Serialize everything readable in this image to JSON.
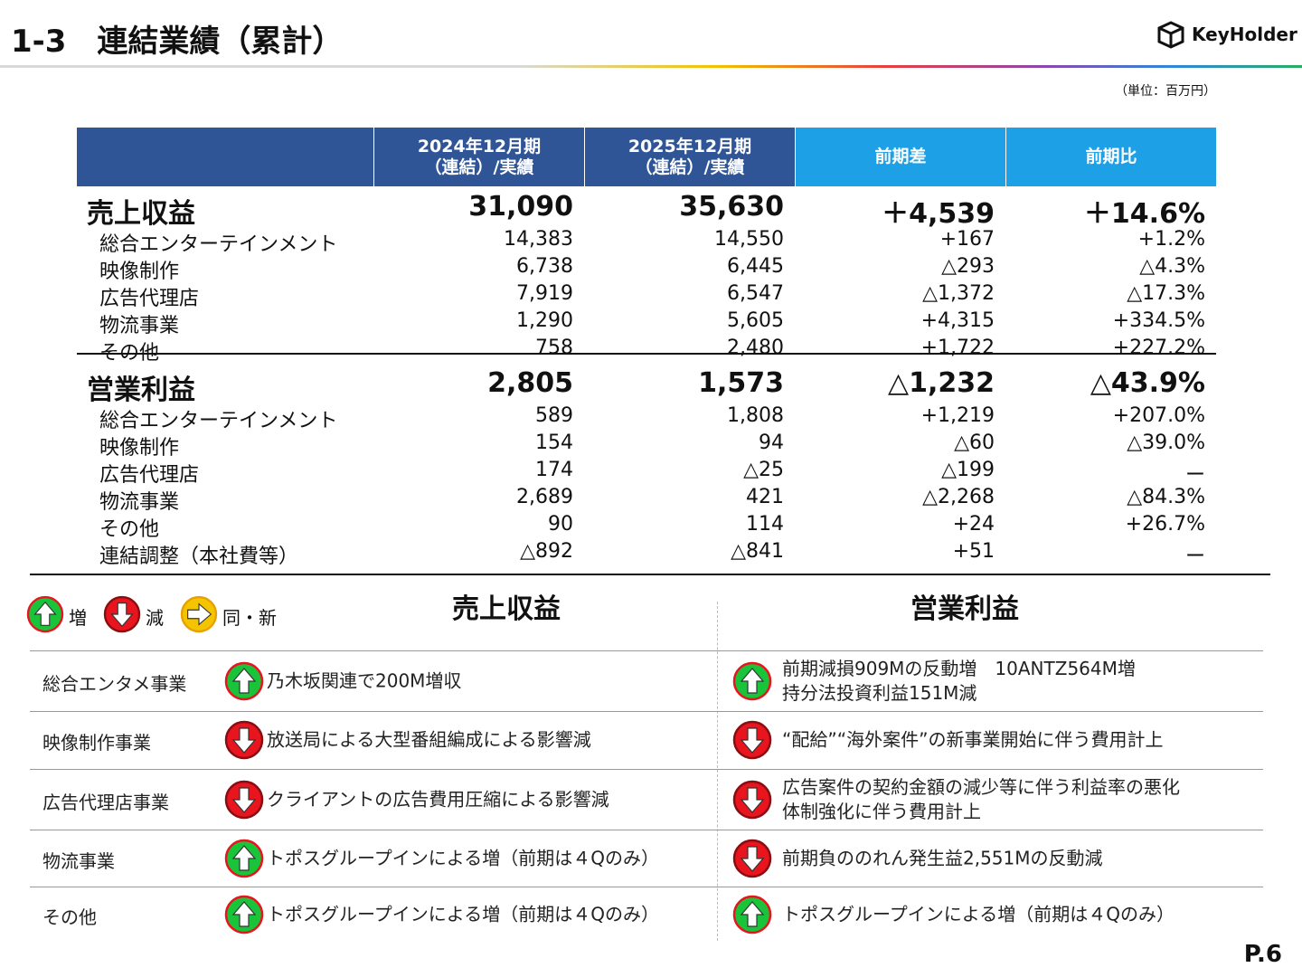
{
  "header": {
    "title": "1-3　連結業績（累計）",
    "logo": "KeyHolder"
  },
  "unit": "（単位：百万円）",
  "table": {
    "columns": [
      [
        "2024年12月期",
        "（連結）/実績"
      ],
      [
        "2025年12月期",
        "（連結）/実績"
      ],
      [
        "前期差"
      ],
      [
        "前期比"
      ]
    ],
    "sections": [
      {
        "label": "売上収益",
        "values": [
          "31,090",
          "35,630",
          "＋4,539",
          "＋14.6%"
        ],
        "rows": [
          {
            "label": "総合エンターテインメント",
            "values": [
              "14,383",
              "14,550",
              "+167",
              "+1.2%"
            ]
          },
          {
            "label": "映像制作",
            "values": [
              "6,738",
              "6,445",
              "△293",
              "△4.3%"
            ]
          },
          {
            "label": "広告代理店",
            "values": [
              "7,919",
              "6,547",
              "△1,372",
              "△17.3%"
            ]
          },
          {
            "label": "物流事業",
            "values": [
              "1,290",
              "5,605",
              "+4,315",
              "+334.5%"
            ]
          },
          {
            "label": "その他",
            "values": [
              "758",
              "2,480",
              "+1,722",
              "+227.2%"
            ]
          }
        ]
      },
      {
        "label": "営業利益",
        "values": [
          "2,805",
          "1,573",
          "△1,232",
          "△43.9%"
        ],
        "rows": [
          {
            "label": "総合エンターテインメント",
            "values": [
              "589",
              "1,808",
              "+1,219",
              "+207.0%"
            ]
          },
          {
            "label": "映像制作",
            "values": [
              "154",
              "94",
              "△60",
              "△39.0%"
            ]
          },
          {
            "label": "広告代理店",
            "values": [
              "174",
              "△25",
              "△199",
              "ー"
            ]
          },
          {
            "label": "物流事業",
            "values": [
              "2,689",
              "421",
              "△2,268",
              "△84.3%"
            ]
          },
          {
            "label": "その他",
            "values": [
              "90",
              "114",
              "+24",
              "+26.7%"
            ]
          },
          {
            "label": "連結調整（本社費等）",
            "values": [
              "△892",
              "△841",
              "+51",
              "ー"
            ]
          }
        ]
      }
    ]
  },
  "legend": [
    {
      "icon": "up",
      "label": "増"
    },
    {
      "icon": "down",
      "label": "減"
    },
    {
      "icon": "same",
      "label": "同・新"
    }
  ],
  "comments": {
    "columns": [
      "売上収益",
      "営業利益"
    ],
    "rows": [
      {
        "segment": "総合エンタメ事業",
        "revenue": {
          "icon": "up",
          "lines": [
            "乃木坂関連で200M増収"
          ]
        },
        "profit": {
          "icon": "up",
          "lines": [
            "前期減損909Mの反動増　10ANTZ564M増",
            "持分法投資利益151M減"
          ]
        }
      },
      {
        "segment": "映像制作事業",
        "revenue": {
          "icon": "down",
          "lines": [
            "放送局による大型番組編成による影響減"
          ]
        },
        "profit": {
          "icon": "down",
          "lines": [
            "“配給”“海外案件”の新事業開始に伴う費用計上"
          ]
        }
      },
      {
        "segment": "広告代理店事業",
        "revenue": {
          "icon": "down",
          "lines": [
            "クライアントの広告費用圧縮による影響減"
          ]
        },
        "profit": {
          "icon": "down",
          "lines": [
            "広告案件の契約金額の減少等に伴う利益率の悪化",
            "体制強化に伴う費用計上"
          ]
        }
      },
      {
        "segment": "物流事業",
        "revenue": {
          "icon": "up",
          "lines": [
            "トポスグループインによる増（前期は４Qのみ）"
          ]
        },
        "profit": {
          "icon": "down",
          "lines": [
            "前期負ののれん発生益2,551Mの反動減"
          ]
        }
      },
      {
        "segment": "その他",
        "revenue": {
          "icon": "up",
          "lines": [
            "トポスグループインによる増（前期は４Qのみ）"
          ]
        },
        "profit": {
          "icon": "up",
          "lines": [
            "トポスグループインによる増（前期は４Qのみ）"
          ]
        }
      }
    ]
  },
  "page_number": "P.6"
}
